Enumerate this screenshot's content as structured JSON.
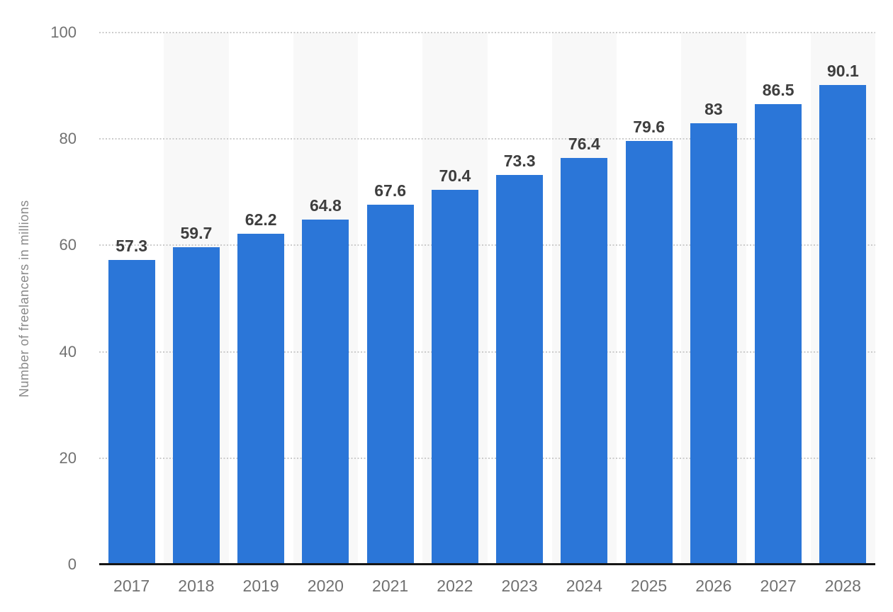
{
  "chart_data": {
    "type": "bar",
    "title": "",
    "xlabel": "",
    "ylabel": "Number of freelancers in millions",
    "categories": [
      "2017",
      "2018",
      "2019",
      "2020",
      "2021",
      "2022",
      "2023",
      "2024",
      "2025",
      "2026",
      "2027",
      "2028"
    ],
    "values": [
      57.3,
      59.7,
      62.2,
      64.8,
      67.6,
      70.4,
      73.3,
      76.4,
      79.6,
      83,
      86.5,
      90.1
    ],
    "value_labels": [
      "57.3",
      "59.7",
      "62.2",
      "64.8",
      "67.6",
      "70.4",
      "73.3",
      "76.4",
      "79.6",
      "83",
      "86.5",
      "90.1"
    ],
    "ylim": [
      0,
      100
    ],
    "yticks": [
      0,
      20,
      40,
      60,
      80,
      100
    ],
    "ytick_labels": [
      "0",
      "20",
      "40",
      "60",
      "80",
      "100"
    ],
    "grid": "horizontal-dotted",
    "legend": "none",
    "plot_bands": "alternating light vertical bands behind every second category column",
    "colors": {
      "bar": "#2b76d8",
      "band": "#f8f8f8",
      "gridline": "#cbcbcb",
      "axis_line": "#161616",
      "tick_label": "#717171",
      "value_label": "#3e3e3e",
      "axis_title": "#898989",
      "background": "#ffffff"
    }
  }
}
